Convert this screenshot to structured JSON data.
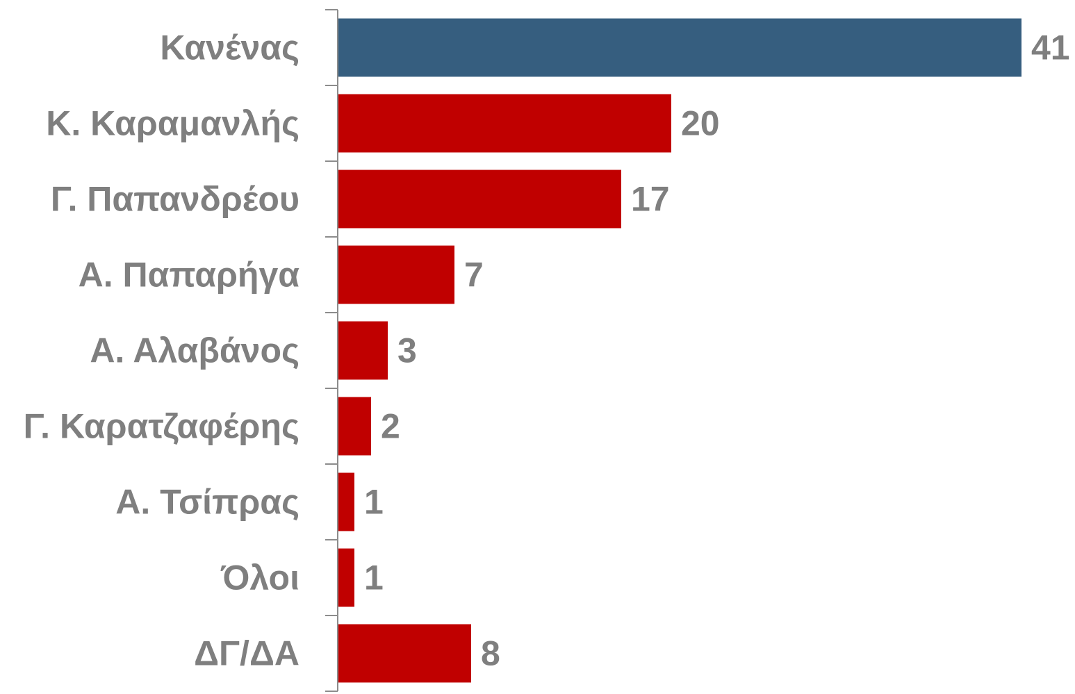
{
  "chart_data": {
    "type": "bar",
    "orientation": "horizontal",
    "categories": [
      "Κανένας",
      "Κ. Καραμανλής",
      "Γ. Παπανδρέου",
      "Α. Παπαρήγα",
      "Α. Αλαβάνος",
      "Γ. Καρατζαφέρης",
      "Α. Τσίπρας",
      "Όλοι",
      "ΔΓ/ΔΑ"
    ],
    "values": [
      41,
      20,
      17,
      7,
      3,
      2,
      1,
      1,
      8
    ],
    "value_labels": [
      "41",
      "20",
      "17",
      "7",
      "3",
      "2",
      "1",
      "1",
      "8"
    ],
    "xlim": [
      0,
      41
    ],
    "grid": false,
    "legend": "none",
    "colors": {
      "highlight": "#365e7f",
      "default": "#c00000",
      "label_text": "#7f7f7f",
      "axis": "#8c8c8c"
    },
    "highlight_index": 0
  }
}
